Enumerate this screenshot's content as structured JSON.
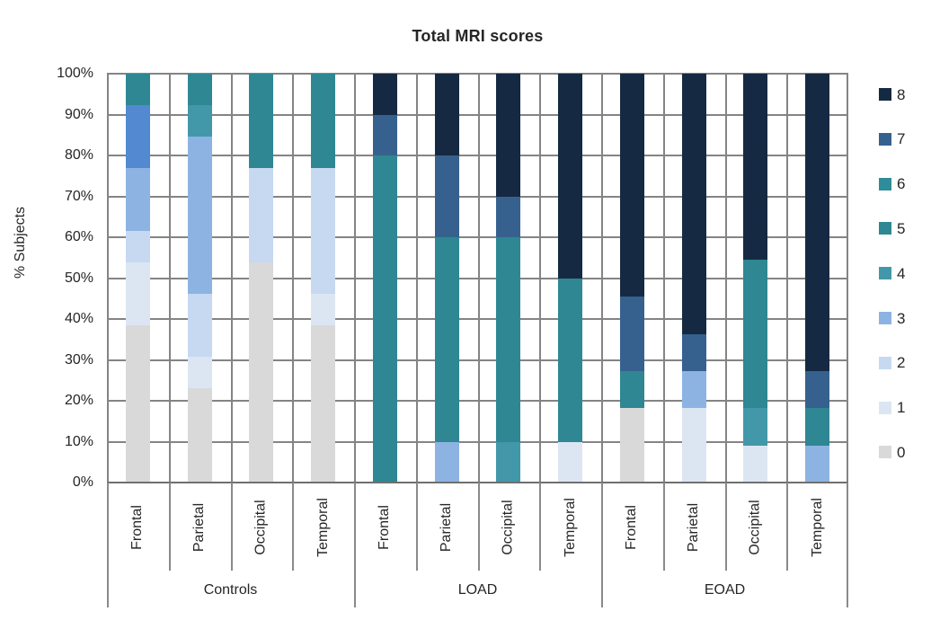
{
  "chart_data": {
    "type": "bar",
    "subtype": "stacked-100",
    "title": "Total MRI scores",
    "ylabel": "% Subjects",
    "ylim": [
      0,
      100
    ],
    "ytick_step": 10,
    "ytick_labels": [
      "0%",
      "10%",
      "20%",
      "30%",
      "40%",
      "50%",
      "60%",
      "70%",
      "80%",
      "90%",
      "100%"
    ],
    "grid": true,
    "legend_position": "right",
    "legend": [
      "8",
      "7",
      "6",
      "5",
      "4",
      "3",
      "2",
      "1",
      "0"
    ],
    "palette": {
      "0": "#D9D9D9",
      "1": "#DCE6F3",
      "2": "#C6D9F1",
      "3": "#8DB3E2",
      "4": "#4298A8",
      "5": "#2E8793",
      "6": "#2F8C99",
      "7": "#36618E",
      "8": "#152A42"
    },
    "groups": [
      {
        "label": "Controls",
        "bars": [
          {
            "label": "Frontal",
            "segments": [
              {
                "score": "0",
                "value": 38.46
              },
              {
                "score": "1",
                "value": 15.38
              },
              {
                "score": "2",
                "value": 7.69
              },
              {
                "score": "3",
                "value": 15.38
              },
              {
                "score": "4",
                "value": 15.38,
                "color": "#5289D0"
              },
              {
                "score": "5",
                "value": 7.69
              }
            ]
          },
          {
            "label": "Parietal",
            "segments": [
              {
                "score": "0",
                "value": 23.08
              },
              {
                "score": "1",
                "value": 7.69
              },
              {
                "score": "2",
                "value": 15.38
              },
              {
                "score": "3",
                "value": 38.46
              },
              {
                "score": "4",
                "value": 7.69
              },
              {
                "score": "5",
                "value": 7.69
              }
            ]
          },
          {
            "label": "Occipital",
            "segments": [
              {
                "score": "0",
                "value": 53.85
              },
              {
                "score": "2",
                "value": 23.08
              },
              {
                "score": "5",
                "value": 23.08
              }
            ]
          },
          {
            "label": "Temporal",
            "segments": [
              {
                "score": "0",
                "value": 38.46
              },
              {
                "score": "1",
                "value": 7.69
              },
              {
                "score": "2",
                "value": 30.77
              },
              {
                "score": "5",
                "value": 23.08
              }
            ]
          }
        ]
      },
      {
        "label": "LOAD",
        "bars": [
          {
            "label": "Frontal",
            "segments": [
              {
                "score": "5",
                "value": 80
              },
              {
                "score": "7",
                "value": 10
              },
              {
                "score": "8",
                "value": 10
              }
            ]
          },
          {
            "label": "Parietal",
            "segments": [
              {
                "score": "3",
                "value": 10
              },
              {
                "score": "5",
                "value": 50
              },
              {
                "score": "7",
                "value": 20
              },
              {
                "score": "8",
                "value": 20
              }
            ]
          },
          {
            "label": "Occipital",
            "segments": [
              {
                "score": "4",
                "value": 10
              },
              {
                "score": "5",
                "value": 50
              },
              {
                "score": "7",
                "value": 10
              },
              {
                "score": "8",
                "value": 30
              }
            ]
          },
          {
            "label": "Temporal",
            "segments": [
              {
                "score": "1",
                "value": 10
              },
              {
                "score": "5",
                "value": 40
              },
              {
                "score": "8",
                "value": 50
              }
            ]
          }
        ]
      },
      {
        "label": "EOAD",
        "bars": [
          {
            "label": "Frontal",
            "segments": [
              {
                "score": "0",
                "value": 18.18
              },
              {
                "score": "5",
                "value": 9.09
              },
              {
                "score": "7",
                "value": 18.18
              },
              {
                "score": "8",
                "value": 54.55
              }
            ]
          },
          {
            "label": "Parietal",
            "segments": [
              {
                "score": "1",
                "value": 18.18
              },
              {
                "score": "3",
                "value": 9.09
              },
              {
                "score": "7",
                "value": 9.09
              },
              {
                "score": "8",
                "value": 63.64
              }
            ]
          },
          {
            "label": "Occipital",
            "segments": [
              {
                "score": "1",
                "value": 9.09
              },
              {
                "score": "4",
                "value": 9.09
              },
              {
                "score": "5",
                "value": 36.36
              },
              {
                "score": "8",
                "value": 45.45
              }
            ]
          },
          {
            "label": "Temporal",
            "segments": [
              {
                "score": "3",
                "value": 9.09
              },
              {
                "score": "5",
                "value": 9.09
              },
              {
                "score": "7",
                "value": 9.09
              },
              {
                "score": "8",
                "value": 72.73
              }
            ]
          }
        ]
      }
    ]
  }
}
